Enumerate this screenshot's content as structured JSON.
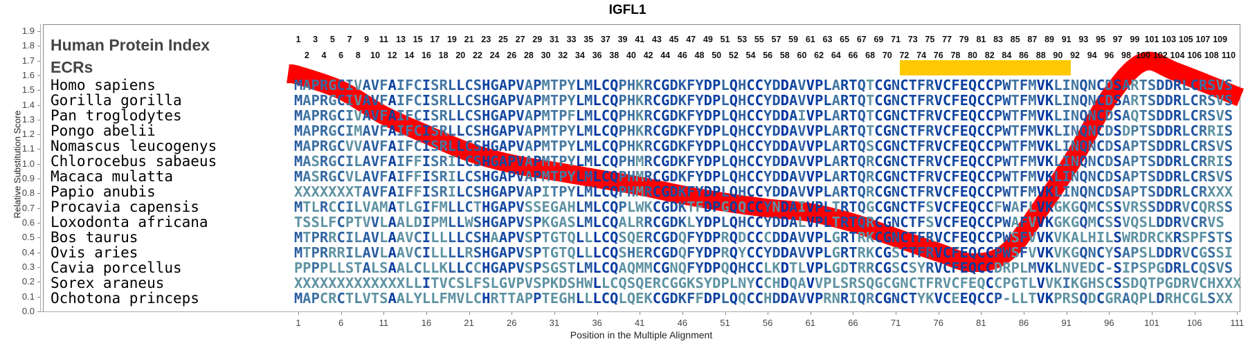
{
  "chart_data": {
    "type": "line",
    "title": "IGFL1",
    "xlabel": "Position in the Multiple Alignment",
    "ylabel": "Relative Substitution Score",
    "ylim": [
      0.0,
      1.9
    ],
    "xlim": [
      1,
      111
    ],
    "yticks": [
      "0.0",
      "0.1",
      "0.2",
      "0.3",
      "0.4",
      "0.5",
      "0.6",
      "0.7",
      "0.8",
      "0.9",
      "1.0",
      "1.1",
      "1.2",
      "1.3",
      "1.4",
      "1.5",
      "1.6",
      "1.7",
      "1.8",
      "1.9"
    ],
    "xticks": [
      1,
      6,
      11,
      16,
      21,
      26,
      31,
      36,
      41,
      46,
      51,
      56,
      61,
      66,
      71,
      76,
      81,
      86,
      91,
      96,
      101,
      106,
      111
    ],
    "series": [
      {
        "name": "Relative Substitution Score",
        "color": "#ff0000",
        "x": [
          0,
          1,
          6,
          11,
          16,
          21,
          26,
          31,
          36,
          41,
          46,
          51,
          56,
          61,
          66,
          71,
          76,
          80,
          84,
          88,
          92,
          96,
          100,
          104,
          111
        ],
        "y": [
          1.61,
          1.6,
          1.5,
          1.33,
          1.2,
          1.08,
          1.0,
          0.95,
          0.9,
          0.85,
          0.79,
          0.74,
          0.7,
          0.67,
          0.6,
          0.5,
          0.4,
          0.33,
          0.4,
          0.7,
          1.05,
          1.45,
          1.69,
          1.62,
          1.45
        ]
      }
    ],
    "ecr_regions": [
      {
        "start": 72,
        "end": 91,
        "color": "#ffc800"
      }
    ],
    "human_protein_index_label": "Human Protein Index",
    "ecr_label": "ECRs",
    "index_numbers": [
      1,
      2,
      3,
      4,
      5,
      6,
      7,
      8,
      9,
      10,
      11,
      12,
      13,
      14,
      15,
      16,
      17,
      18,
      19,
      20,
      21,
      22,
      23,
      24,
      25,
      26,
      27,
      28,
      29,
      30,
      31,
      32,
      33,
      34,
      35,
      36,
      37,
      38,
      39,
      40,
      41,
      42,
      43,
      44,
      45,
      46,
      47,
      48,
      49,
      50,
      51,
      52,
      53,
      54,
      55,
      56,
      57,
      58,
      59,
      60,
      61,
      62,
      63,
      64,
      65,
      66,
      67,
      68,
      69,
      70,
      71,
      72,
      73,
      74,
      75,
      76,
      77,
      78,
      79,
      80,
      81,
      82,
      83,
      84,
      85,
      86,
      87,
      88,
      89,
      90,
      91,
      92,
      93,
      94,
      95,
      96,
      97,
      98,
      99,
      100,
      101,
      102,
      103,
      104,
      105,
      106,
      107,
      108,
      109,
      110
    ],
    "alignment": [
      {
        "species": "Homo sapiens",
        "seq": "MAPRGCIVAVFAIFCISRLLCSHGAPVAPMTPYLMLCQPHKRCGDKFYDPLQHCCYDDAVVPLARTQTCGNCTFRVCFEQCCPWTFMVKLINQNCDSARTSDDRLCRSVS"
      },
      {
        "species": "Gorilla gorilla",
        "seq": "MAPRGCIVAVFAIFCISRLLCSHGAPVAPMTPYLMLCQPHKRCGDKFYDPLQHCCYDDAVVPLARTQTCGNCTFRVCFEQCCPWTFMVKLINQNCDSARTSDDRLCRSVS"
      },
      {
        "species": "Pan troglodytes",
        "seq": "MAPRGCIVAVFAIFCISRLLCSHGAPVAPMTPFLMLCQPHKRCGDKFYDPLQHCCYDDAIVPLARTQTCGNCTFRVCFEQCCPWTFMVKLINQNCDSAQTSDDRLCRSVS"
      },
      {
        "species": "Pongo abelii",
        "seq": "MAPRGCIMAVFAIFCISRLLCSHGAPVAPMTPYLMLCQPHKRCGDKFYDPLQHCCYDDAVVPLARTQTCGNCTFRVCFEQCCPWTFMVKLINQNCDSDPTSDDRLCRRIS"
      },
      {
        "species": "Nomascus leucogenys",
        "seq": "MAPRGCVVAVFAIFCISRLLCSHGAPVAPMTPYLMLCQPHKRCGDKFYDPLQHCCYDDAVVPLARTQSCGNCTFRVCFEQCCPWTFMVKLINQNCDSAPTSDDRLCRSVS"
      },
      {
        "species": "Chlorocebus sabaeus",
        "seq": "MASRGCILAVFAIFFISRILCSHGAPVAPMTPYLMLCQPHMRCGDKFYDPLQHCCYDDAVVPLARTQRCGNCTFRVCFEQCCPWTFMVKLINQNCDSAPTSDDRLCRRIS"
      },
      {
        "species": "Macaca mulatta",
        "seq": "MASRGCVLAVFAIFFISRILCSHGAPVAPMTPYLMLCQPHMRCGDKFYDPLQHCCYDDAVVPLARTQRCGNCTFRVCFEQCCPWTFMVKLINQNCDSAPTSDDRLCRSVS"
      },
      {
        "species": "Papio anubis",
        "seq": "XXXXXXXTAVFAIFFISRILCSHGAPVAPITPYLMLCQPHMRCGDKFYDPLQHCCYDDAVVPLARTQRCGNCTFRVCFEQCCPWTFMVKLINQNCDSAPTSDDRLCRXXX"
      },
      {
        "species": "Procavia capensis",
        "seq": "MTLRCCILVAMATLGIFMLLCTHGAPVSSEGAHLMLCQPLWKCGDKTFDPGQQCCYNDAIVPLTRTQGCGNCTFSVCFEQCCFWAFLVKGKGQMCSSVRSSDDRVCQRSS"
      },
      {
        "species": "Loxodonta africana",
        "seq": "TSSLFCPTVVLAALDIPMLLWSHGAPVSPKGASLMLCQALRRCGDKLYDPLQHCCYDDALVPLTRTQRCGNCTFSVCFEQCCPWAFVVKGKGQMCSSVQSLDDRVCRVS"
      },
      {
        "species": "Bos taurus",
        "seq": "MTPRRCILAVLAAVCILLLLCSHAAPVSPTGTQLLLCQSQERCGDQFYDPRQDCCCDDAVVPLGRTRKCGNCTFRVCFEQCCPWSFVVKVKALHILSWRDRCKRSPFSTS"
      },
      {
        "species": "Ovis aries",
        "seq": "MTPRRRILAVLAAVCILLLLRSHGAPVSPTGTQLLLCQSHERCGDQFYDPRQYCCYDDAVVPLGRTRKCGSCTFRVCFEQCCPWSFVVKVKGQNCYSAPSLDDRVCGSSI"
      },
      {
        "species": "Cavia porcellus",
        "seq": "PPPPLLSTALSAALCLLKLLCCHGAPVSPSGSTLMLCQAQMMCGNQFYDPQQHCCLKDTLVPLGDTRRCGSCSYRVCFEQCCDRPLMVKLNVEDC-SIPSPGDRLCQSVS"
      },
      {
        "species": "Sorex araneus",
        "seq": "XXXXXXXXXXXXXLLITVCSLFSLGVPVSPKDSHWLLCQSQERCGGKSYDPLNYCCHDQAVVPLSRSQGCGNCTFRVCFEQCCPGTLVVKIKGHSCSSDQTPGDRVCHXXX"
      },
      {
        "species": "Ochotona princeps",
        "seq": "MAPCRCTLVTSAALYLLFMVLCHRTTAPPTEGHLLLCQLQEKCGDKFFDPLQQCCHDDAVVPRNRIQRCGNCTYKVCEEQCCP-LLTVKPRSQDCGRAQPLDRHCGLSXX"
      }
    ],
    "colors": {
      "conserved": "#0033a0",
      "variable": "#6fa3a3",
      "axis": "#888888"
    }
  }
}
